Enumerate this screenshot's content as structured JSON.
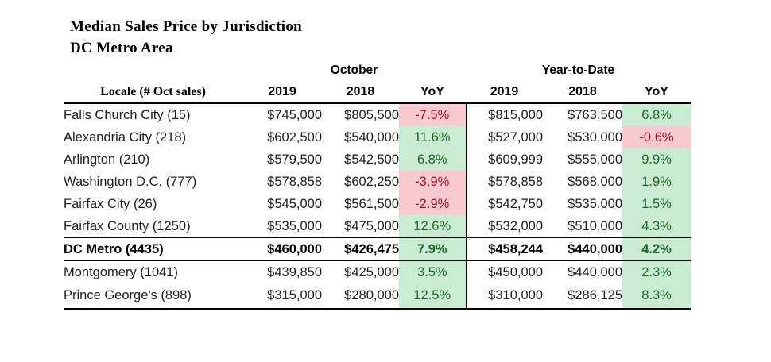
{
  "page": {
    "title": "Median Sales Price by Jurisdiction",
    "subtitle": "DC Metro Area"
  },
  "colors": {
    "positive_bg": "#c9ebd1",
    "positive_text": "#1d662b",
    "negative_bg": "#f8cad0",
    "negative_text": "#9c1727"
  },
  "table": {
    "group_headers": {
      "october": "October",
      "ytd": "Year-to-Date"
    },
    "locale_header": {
      "bold": "Locale",
      "rest": " (# Oct sales)"
    },
    "col_headers": {
      "oct_2019": "2019",
      "oct_2018": "2018",
      "oct_yoy": "YoY",
      "ytd_2019": "2019",
      "ytd_2018": "2018",
      "ytd_yoy": "YoY"
    }
  },
  "chart_data": {
    "type": "table",
    "title": "Median Sales Price by Jurisdiction",
    "subtitle": "DC Metro Area",
    "column_groups": [
      "October",
      "Year-to-Date"
    ],
    "columns": [
      "Locale (# Oct sales)",
      "October 2019",
      "October 2018",
      "October YoY",
      "YTD 2019",
      "YTD 2018",
      "YTD YoY"
    ],
    "rows": [
      {
        "locale": "Falls Church City (15)",
        "oct_2019": "$745,000",
        "oct_2018": "$805,500",
        "oct_yoy": "-7.5%",
        "oct_trend": "negative",
        "ytd_2019": "$815,000",
        "ytd_2018": "$763,500",
        "ytd_yoy": "6.8%",
        "ytd_trend": "positive",
        "emphasis": false
      },
      {
        "locale": "Alexandria City (218)",
        "oct_2019": "$602,500",
        "oct_2018": "$540,000",
        "oct_yoy": "11.6%",
        "oct_trend": "positive",
        "ytd_2019": "$527,000",
        "ytd_2018": "$530,000",
        "ytd_yoy": "-0.6%",
        "ytd_trend": "negative",
        "emphasis": false
      },
      {
        "locale": "Arlington (210)",
        "oct_2019": "$579,500",
        "oct_2018": "$542,500",
        "oct_yoy": "6.8%",
        "oct_trend": "positive",
        "ytd_2019": "$609,999",
        "ytd_2018": "$555,000",
        "ytd_yoy": "9.9%",
        "ytd_trend": "positive",
        "emphasis": false
      },
      {
        "locale": "Washington D.C. (777)",
        "oct_2019": "$578,858",
        "oct_2018": "$602,250",
        "oct_yoy": "-3.9%",
        "oct_trend": "negative",
        "ytd_2019": "$578,858",
        "ytd_2018": "$568,000",
        "ytd_yoy": "1.9%",
        "ytd_trend": "positive",
        "emphasis": false
      },
      {
        "locale": "Fairfax City (26)",
        "oct_2019": "$545,000",
        "oct_2018": "$561,500",
        "oct_yoy": "-2.9%",
        "oct_trend": "negative",
        "ytd_2019": "$542,750",
        "ytd_2018": "$535,000",
        "ytd_yoy": "1.5%",
        "ytd_trend": "positive",
        "emphasis": false
      },
      {
        "locale": "Fairfax County (1250)",
        "oct_2019": "$535,000",
        "oct_2018": "$475,000",
        "oct_yoy": "12.6%",
        "oct_trend": "positive",
        "ytd_2019": "$532,000",
        "ytd_2018": "$510,000",
        "ytd_yoy": "4.3%",
        "ytd_trend": "positive",
        "emphasis": false
      },
      {
        "locale": "DC Metro (4435)",
        "oct_2019": "$460,000",
        "oct_2018": "$426,475",
        "oct_yoy": "7.9%",
        "oct_trend": "positive",
        "ytd_2019": "$458,244",
        "ytd_2018": "$440,000",
        "ytd_yoy": "4.2%",
        "ytd_trend": "positive",
        "emphasis": true
      },
      {
        "locale": "Montgomery (1041)",
        "oct_2019": "$439,850",
        "oct_2018": "$425,000",
        "oct_yoy": "3.5%",
        "oct_trend": "positive",
        "ytd_2019": "$450,000",
        "ytd_2018": "$440,000",
        "ytd_yoy": "2.3%",
        "ytd_trend": "positive",
        "emphasis": false
      },
      {
        "locale": "Prince George's (898)",
        "oct_2019": "$315,000",
        "oct_2018": "$280,000",
        "oct_yoy": "12.5%",
        "oct_trend": "positive",
        "ytd_2019": "$310,000",
        "ytd_2018": "$286,125",
        "ytd_yoy": "8.3%",
        "ytd_trend": "positive",
        "emphasis": false
      }
    ]
  }
}
